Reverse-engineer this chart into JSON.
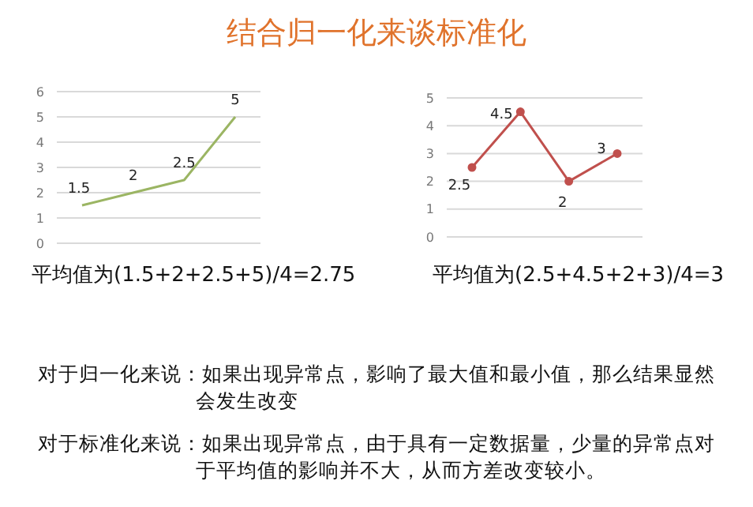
{
  "chart_data": [
    {
      "type": "line",
      "title": "结合归一化来谈标准化",
      "categories": [
        null,
        null,
        null,
        null
      ],
      "series": [
        {
          "color": "#9bb563",
          "values": [
            1.5,
            2,
            2.5,
            5
          ]
        }
      ],
      "ylim": [
        0,
        6
      ],
      "yticks": [
        0,
        1,
        2,
        3,
        4,
        5,
        6
      ],
      "grid": "y",
      "tick_labels": "y",
      "marker": "none",
      "data_labels": true,
      "annotations": [
        "平均值为(1.5+2+2.5+5)/4=2.75"
      ]
    },
    {
      "type": "line",
      "categories": [
        null,
        null,
        null,
        null
      ],
      "series": [
        {
          "color": "#c0504d",
          "values": [
            2.5,
            4.5,
            2,
            3
          ]
        }
      ],
      "ylim": [
        0,
        5
      ],
      "yticks": [
        0,
        1,
        2,
        3,
        4,
        5
      ],
      "grid": "y",
      "tick_labels": "y",
      "marker": "circle",
      "data_labels": true,
      "annotations": [
        "平均值为(2.5+4.5+2+3)/4=3",
        "对于归一化来说：如果出现异常点，影响了最大值和最小值，那么结果显然会发生改变",
        "对于标准化来说：如果出现异常点，由于具有一定数据量，少量的异常点对于平均值的影响并不大，从而方差改变较小。"
      ]
    }
  ]
}
